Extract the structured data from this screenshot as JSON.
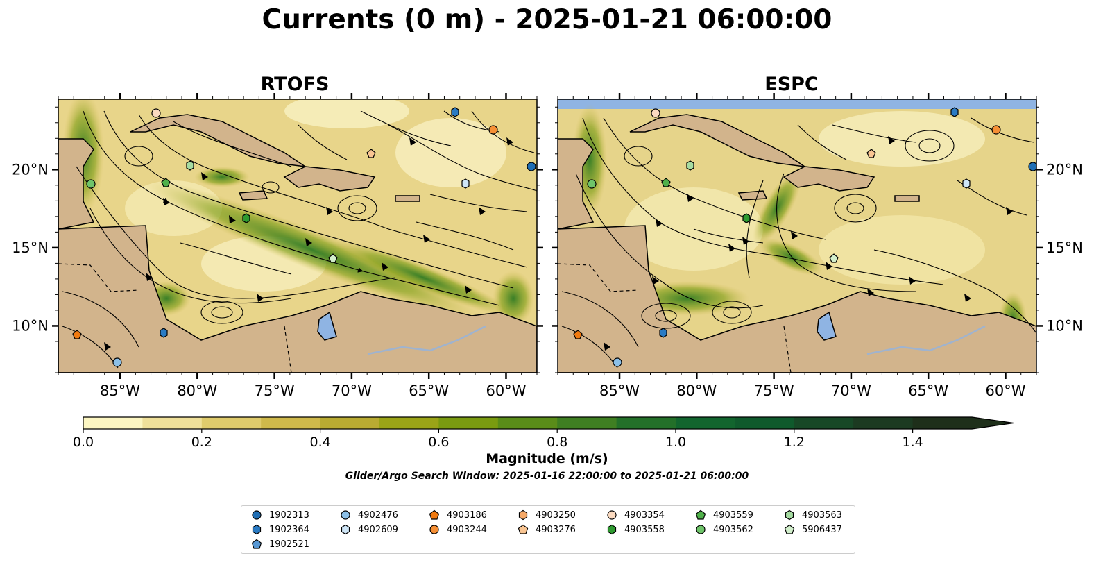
{
  "title": "Currents (0 m) - 2025-01-21 06:00:00",
  "panels": [
    {
      "title": "RTOFS"
    },
    {
      "title": "ESPC"
    }
  ],
  "axes": {
    "x_ticks": [
      "85°W",
      "80°W",
      "75°W",
      "70°W",
      "65°W",
      "60°W"
    ],
    "y_ticks": [
      "20°N",
      "15°N",
      "10°N"
    ],
    "x_range_lon": [
      -89,
      -58
    ],
    "y_range_lat": [
      7,
      24.5
    ]
  },
  "colorbar": {
    "label": "Magnitude (m/s)",
    "ticks": [
      "0.0",
      "0.2",
      "0.4",
      "0.6",
      "0.8",
      "1.0",
      "1.2",
      "1.4"
    ],
    "colors": [
      "#fcf6c2",
      "#efe09a",
      "#dfcb6c",
      "#cfb94b",
      "#b9ab32",
      "#9ba417",
      "#7a9b10",
      "#5a8d19",
      "#3f7f22",
      "#237029",
      "#12652e",
      "#0f5a2c",
      "#174826",
      "#1c3a21",
      "#1e2f1a"
    ],
    "extend": "max"
  },
  "subtitle": "Glider/Argo Search Window: 2025-01-16 22:00:00 to 2025-01-21 06:00:00",
  "legend": [
    {
      "id": "1902313",
      "marker": "circle",
      "color": "#1f6eb4"
    },
    {
      "id": "1902364",
      "marker": "hexagon",
      "color": "#2a7bc4"
    },
    {
      "id": "1902521",
      "marker": "pentagon",
      "color": "#5797d3"
    },
    {
      "id": "4902476",
      "marker": "circle",
      "color": "#8cc0e8"
    },
    {
      "id": "4902609",
      "marker": "hexagon",
      "color": "#cfe6f7"
    },
    {
      "id": "4903186",
      "marker": "pentagon",
      "color": "#f07a10"
    },
    {
      "id": "4903244",
      "marker": "circle",
      "color": "#f58f35"
    },
    {
      "id": "4903250",
      "marker": "hexagon",
      "color": "#f6a968"
    },
    {
      "id": "4903276",
      "marker": "pentagon",
      "color": "#f9c592"
    },
    {
      "id": "4903354",
      "marker": "circle",
      "color": "#fbdac0"
    },
    {
      "id": "4903558",
      "marker": "hexagon",
      "color": "#2e9a30"
    },
    {
      "id": "4903559",
      "marker": "pentagon",
      "color": "#4fb04a"
    },
    {
      "id": "4903562",
      "marker": "circle",
      "color": "#6fc46a"
    },
    {
      "id": "4903563",
      "marker": "hexagon",
      "color": "#a6dca2"
    },
    {
      "id": "5906437",
      "marker": "pentagon",
      "color": "#d2efcc"
    }
  ],
  "colors": {
    "land": "#d2b48c",
    "lake": "#8fb4e3",
    "river": "#9fb3cf",
    "streamline": "#000000"
  }
}
